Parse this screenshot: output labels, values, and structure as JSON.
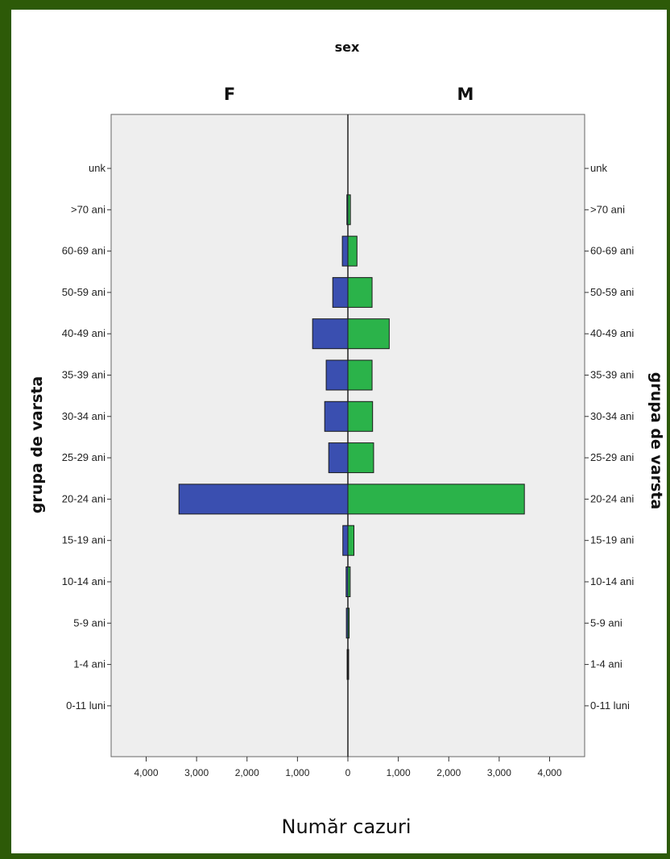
{
  "chart_data": {
    "type": "bar",
    "orientation": "horizontal-population-pyramid",
    "title": "sex",
    "xlabel": "Număr cazuri",
    "ylabel": "grupa de varsta",
    "xlim": [
      -4000,
      4000
    ],
    "x_ticks": [
      "4,000",
      "3,000",
      "2,000",
      "1,000",
      "0",
      "1,000",
      "2,000",
      "3,000",
      "4,000"
    ],
    "categories": [
      "unk",
      ">70 ani",
      "60-69 ani",
      "50-59 ani",
      "40-49 ani",
      "35-39 ani",
      "30-34 ani",
      "25-29 ani",
      "20-24 ani",
      "15-19 ani",
      "10-14 ani",
      "5-9 ani",
      "1-4 ani",
      "0-11 luni"
    ],
    "series": [
      {
        "name": "F",
        "color": "#3a4fb0",
        "values": [
          0,
          20,
          110,
          300,
          700,
          430,
          460,
          380,
          3350,
          100,
          35,
          30,
          15,
          0
        ]
      },
      {
        "name": "M",
        "color": "#2bb34a",
        "values": [
          0,
          50,
          180,
          480,
          820,
          480,
          490,
          510,
          3500,
          120,
          45,
          25,
          15,
          0
        ]
      }
    ],
    "grid": false
  }
}
